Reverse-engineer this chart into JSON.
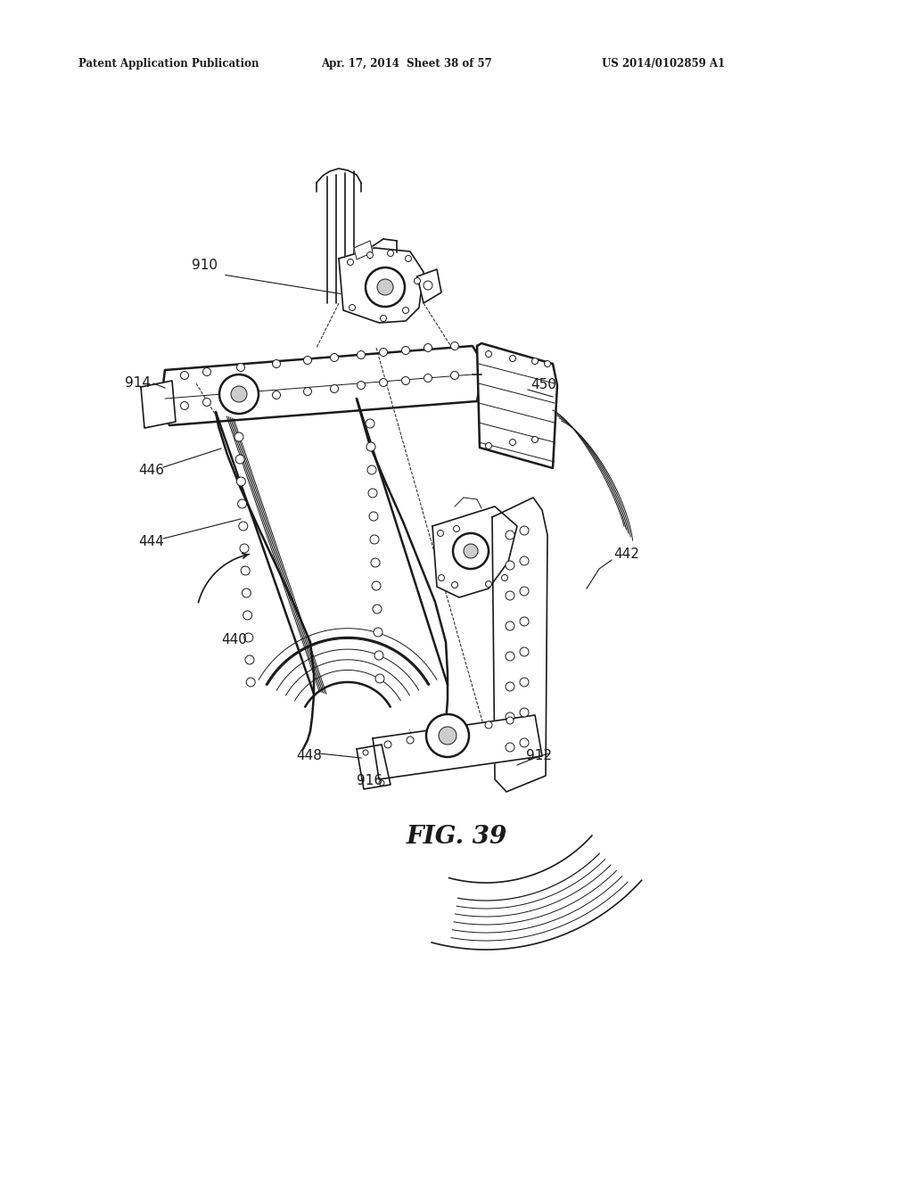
{
  "background_color": "#ffffff",
  "header_left": "Patent Application Publication",
  "header_center": "Apr. 17, 2014  Sheet 38 of 57",
  "header_right": "US 2014/0102859 A1",
  "figure_label": "FIG. 39",
  "color": "#1a1a1a",
  "lw_thin": 0.7,
  "lw_med": 1.2,
  "lw_thick": 1.8
}
